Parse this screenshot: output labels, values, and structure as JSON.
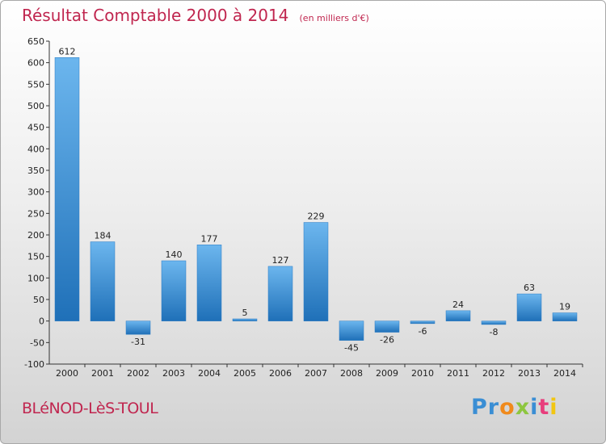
{
  "chart_data": {
    "type": "bar",
    "title": "Résultat Comptable 2000 à 2014",
    "subtitle": "(en milliers d'€)",
    "categories": [
      "2000",
      "2001",
      "2002",
      "2003",
      "2004",
      "2005",
      "2006",
      "2007",
      "2008",
      "2009",
      "2010",
      "2011",
      "2012",
      "2013",
      "2014"
    ],
    "values": [
      612,
      184,
      -31,
      140,
      177,
      5,
      127,
      229,
      -45,
      -26,
      -6,
      24,
      -8,
      63,
      19
    ],
    "value_labels": [
      "612",
      "184",
      "-31",
      "140",
      "177",
      "5",
      "127",
      "229",
      "-45",
      "-26",
      "-6",
      "24",
      "-8",
      "63",
      "19"
    ],
    "ylim": [
      -100,
      650
    ],
    "yticks": [
      "-100",
      "-50",
      "0",
      "50",
      "100",
      "150",
      "200",
      "250",
      "300",
      "350",
      "400",
      "450",
      "500",
      "550",
      "600",
      "650"
    ],
    "grid": false,
    "bar_color": "#3d8fd6"
  },
  "footer": {
    "place": "BLéNOD-LèS-TOUL",
    "logo_letters": [
      {
        "ch": "P",
        "color": "#3a8ed4"
      },
      {
        "ch": "r",
        "color": "#3a8ed4"
      },
      {
        "ch": "o",
        "color": "#f08a1c"
      },
      {
        "ch": "x",
        "color": "#8dc63f"
      },
      {
        "ch": "i",
        "color": "#3a8ed4"
      },
      {
        "ch": "t",
        "color": "#e83d7c"
      },
      {
        "ch": "i",
        "color": "#f2c611"
      }
    ]
  }
}
